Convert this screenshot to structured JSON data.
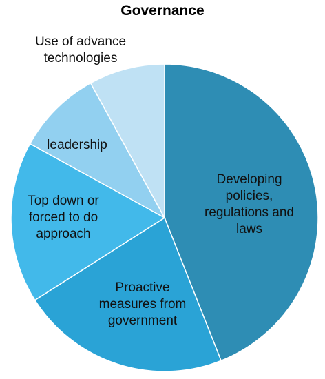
{
  "chart_data": {
    "type": "pie",
    "title": "Governance",
    "categories": [
      "Developing policies, regulations and laws",
      "Proactive measures from government",
      "Top down or forced to do approach",
      "leadership",
      "Use of advance technologies"
    ],
    "values": [
      44,
      22,
      17,
      9,
      8
    ],
    "colors": [
      "#2e8db4",
      "#2aa3d6",
      "#42b9ea",
      "#92d0f0",
      "#bfe1f4"
    ]
  }
}
